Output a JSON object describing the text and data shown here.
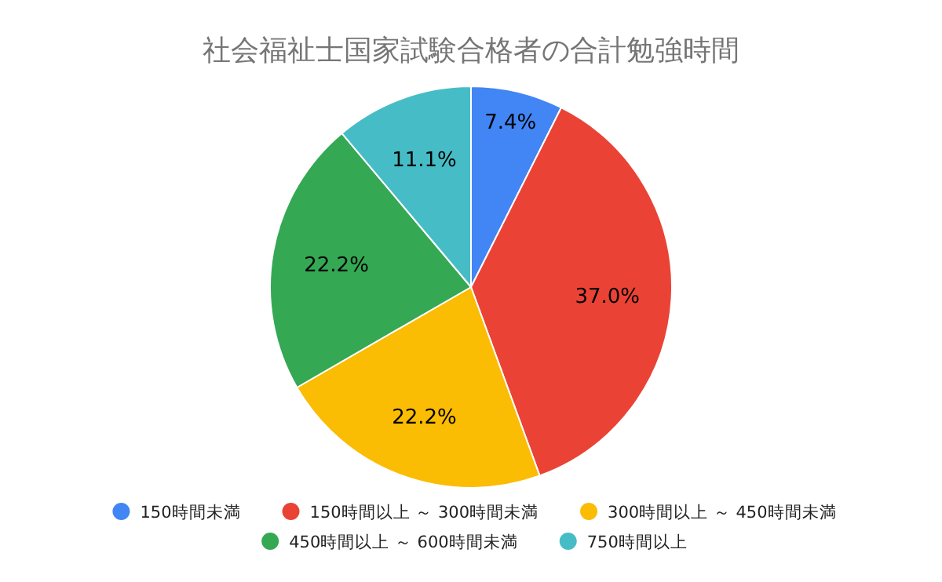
{
  "chart_data": {
    "type": "pie",
    "title": "社会福祉士国家試験合格者の合計勉強時間",
    "categories": [
      "150時間未満",
      "150時間以上 ～ 300時間未満",
      "300時間以上 ～ 450時間未満",
      "450時間以上 ～ 600時間未満",
      "750時間以上"
    ],
    "values": [
      7.4,
      37.0,
      22.2,
      22.2,
      11.1
    ],
    "value_labels": [
      "7.4%",
      "37.0%",
      "22.2%",
      "22.2%",
      "11.1%"
    ],
    "colors": [
      "#4285f4",
      "#ea4335",
      "#fbbc04",
      "#34a853",
      "#46bdc6"
    ],
    "legend": "bottom"
  }
}
